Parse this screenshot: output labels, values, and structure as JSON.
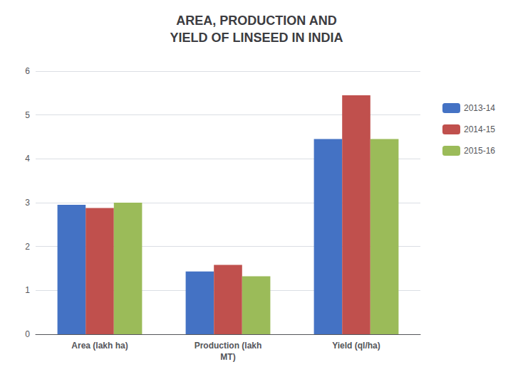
{
  "chart_data": {
    "type": "bar",
    "title": "AREA, PRODUCTION AND\nYIELD OF LINSEED IN INDIA",
    "categories": [
      "Area (lakh ha)",
      "Production (lakh\nMT)",
      "Yield (ql/ha)"
    ],
    "series": [
      {
        "name": "2013-14",
        "color": "#4472C4",
        "values": [
          2.95,
          1.43,
          4.45
        ]
      },
      {
        "name": "2014-15",
        "color": "#C0504D",
        "values": [
          2.88,
          1.58,
          5.45
        ]
      },
      {
        "name": "2015-16",
        "color": "#9BBB59",
        "values": [
          3.0,
          1.32,
          4.45
        ]
      }
    ],
    "ylim": [
      0,
      6
    ],
    "yticks": [
      0,
      1,
      2,
      3,
      4,
      5,
      6
    ],
    "grid": true,
    "legend": "right"
  }
}
